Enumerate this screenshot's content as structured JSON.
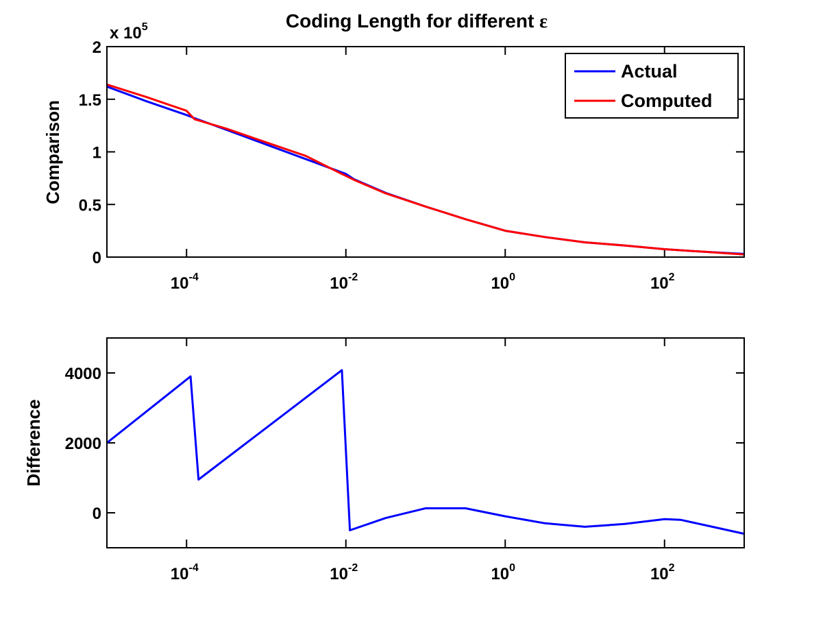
{
  "title": "Coding Length for different",
  "title_symbol": "ε",
  "colors": {
    "actual": "#0000ff",
    "computed": "#ff0000"
  },
  "chart_data": [
    {
      "id": "top",
      "type": "line",
      "xscale": "log",
      "xlim_log10": [
        -5,
        3
      ],
      "xticks": [
        {
          "log10": -4,
          "base": "10",
          "exp": "-4"
        },
        {
          "log10": -2,
          "base": "10",
          "exp": "-2"
        },
        {
          "log10": 0,
          "base": "10",
          "exp": "0"
        },
        {
          "log10": 2,
          "base": "10",
          "exp": "2"
        }
      ],
      "ylim": [
        0,
        2
      ],
      "yticks": [
        {
          "value": 0,
          "label": "0"
        },
        {
          "value": 0.5,
          "label": "0.5"
        },
        {
          "value": 1,
          "label": "1"
        },
        {
          "value": 1.5,
          "label": "1.5"
        },
        {
          "value": 2,
          "label": "2"
        }
      ],
      "ylabel": "Comparison",
      "scale_base": "x 10",
      "scale_exp": "5",
      "legend": {
        "position": "top-right",
        "entries": [
          "Actual",
          "Computed"
        ]
      },
      "series": [
        {
          "name": "Actual",
          "color": "#0000ff",
          "points": [
            [
              -5,
              1.62
            ],
            [
              -4.5,
              1.48
            ],
            [
              -4,
              1.35
            ],
            [
              -3.9,
              1.32
            ],
            [
              -3.5,
              1.21
            ],
            [
              -3,
              1.07
            ],
            [
              -2.5,
              0.93
            ],
            [
              -2,
              0.79
            ],
            [
              -1.9,
              0.74
            ],
            [
              -1.5,
              0.61
            ],
            [
              -1,
              0.48
            ],
            [
              -0.5,
              0.36
            ],
            [
              0,
              0.25
            ],
            [
              0.5,
              0.19
            ],
            [
              1,
              0.14
            ],
            [
              1.5,
              0.11
            ],
            [
              2,
              0.075
            ],
            [
              2.5,
              0.05
            ],
            [
              3,
              0.03
            ]
          ]
        },
        {
          "name": "Computed",
          "color": "#ff0000",
          "points": [
            [
              -5,
              1.64
            ],
            [
              -4.5,
              1.52
            ],
            [
              -4,
              1.39
            ],
            [
              -3.95,
              1.35
            ],
            [
              -3.9,
              1.31
            ],
            [
              -3.5,
              1.22
            ],
            [
              -3,
              1.09
            ],
            [
              -2.5,
              0.96
            ],
            [
              -2.05,
              0.79
            ],
            [
              -1.9,
              0.735
            ],
            [
              -1.5,
              0.605
            ],
            [
              -1,
              0.48
            ],
            [
              -0.5,
              0.36
            ],
            [
              0,
              0.25
            ],
            [
              0.5,
              0.19
            ],
            [
              1,
              0.14
            ],
            [
              1.5,
              0.11
            ],
            [
              2,
              0.075
            ],
            [
              2.5,
              0.05
            ],
            [
              3,
              0.025
            ]
          ]
        }
      ]
    },
    {
      "id": "bottom",
      "type": "line",
      "xscale": "log",
      "xlim_log10": [
        -5,
        3
      ],
      "xticks": [
        {
          "log10": -4,
          "base": "10",
          "exp": "-4"
        },
        {
          "log10": -2,
          "base": "10",
          "exp": "-2"
        },
        {
          "log10": 0,
          "base": "10",
          "exp": "0"
        },
        {
          "log10": 2,
          "base": "10",
          "exp": "2"
        }
      ],
      "ylim": [
        -1000,
        5000
      ],
      "yticks": [
        {
          "value": 0,
          "label": "0"
        },
        {
          "value": 2000,
          "label": "2000"
        },
        {
          "value": 4000,
          "label": "4000"
        }
      ],
      "ylabel": "Difference",
      "series": [
        {
          "name": "Difference",
          "color": "#0000ff",
          "points": [
            [
              -5,
              2000
            ],
            [
              -3.95,
              3900
            ],
            [
              -3.85,
              950
            ],
            [
              -2.05,
              4080
            ],
            [
              -1.95,
              -500
            ],
            [
              -1.5,
              -150
            ],
            [
              -1,
              130
            ],
            [
              -0.5,
              130
            ],
            [
              0,
              -100
            ],
            [
              0.5,
              -300
            ],
            [
              1,
              -400
            ],
            [
              1.5,
              -320
            ],
            [
              2,
              -180
            ],
            [
              2.2,
              -200
            ],
            [
              2.6,
              -400
            ],
            [
              3,
              -600
            ]
          ]
        }
      ]
    }
  ]
}
